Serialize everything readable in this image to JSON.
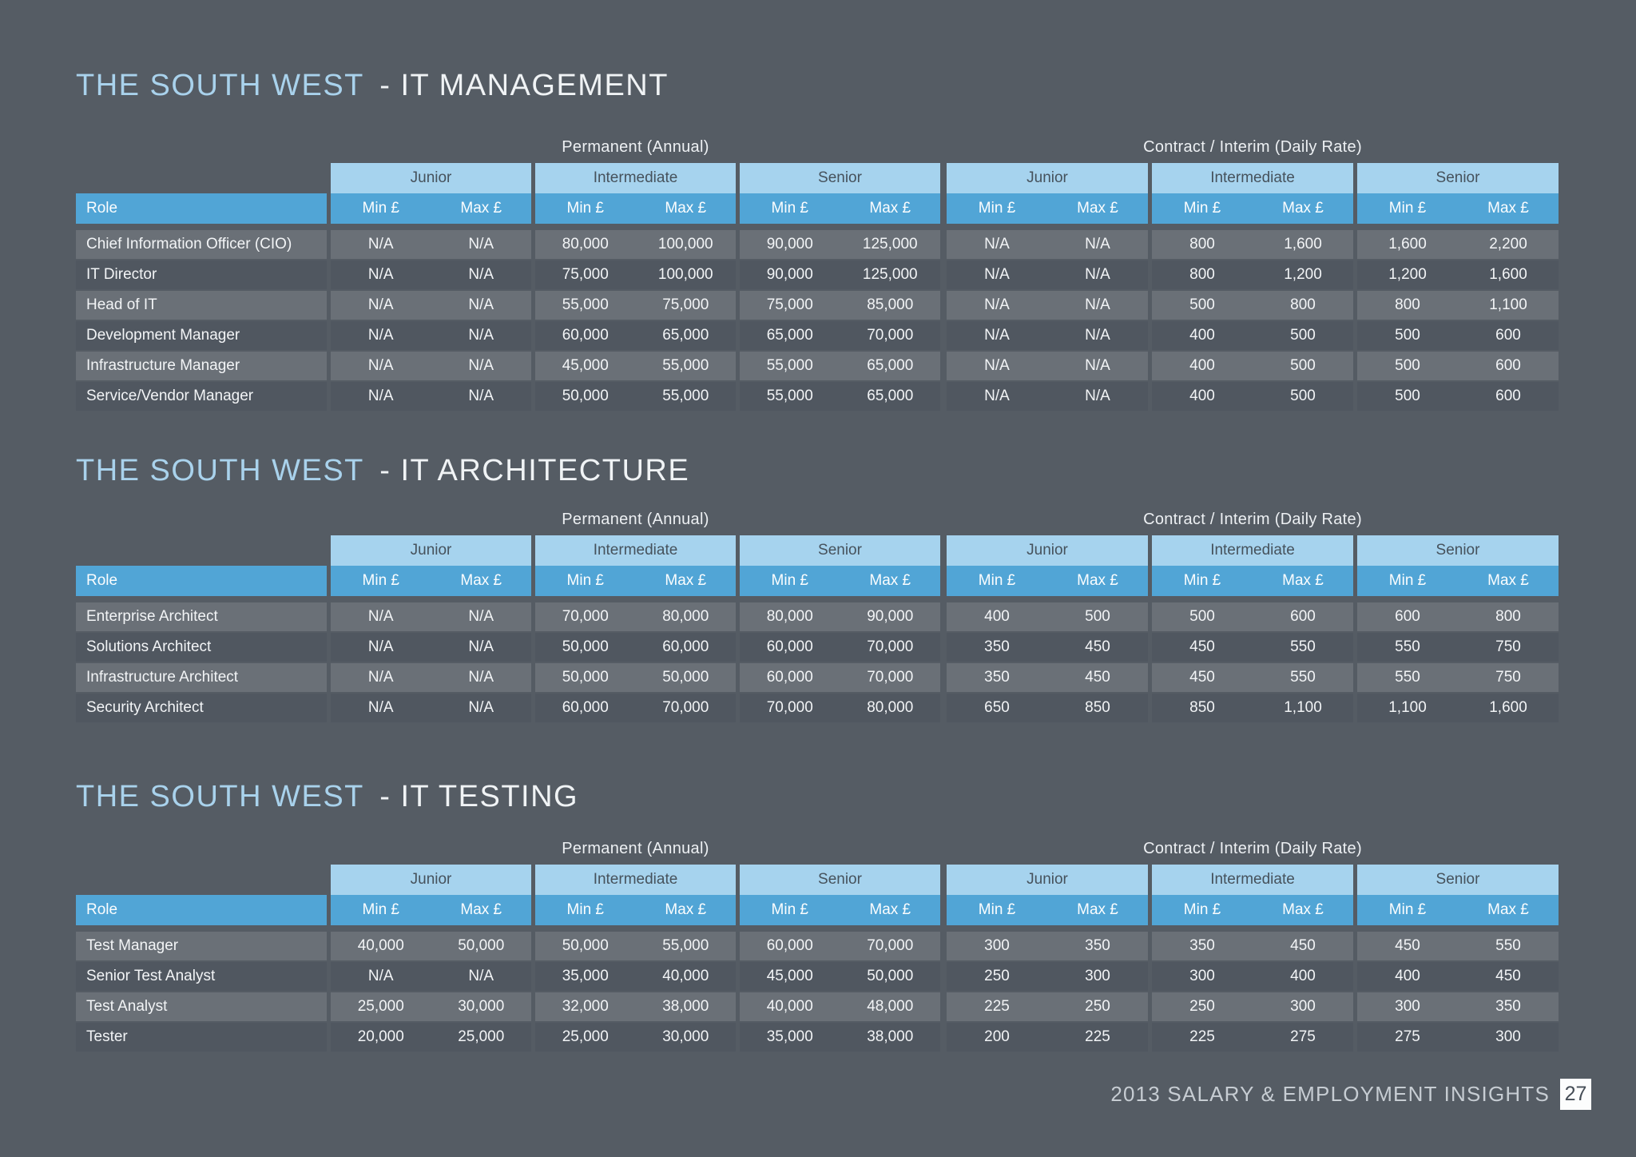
{
  "header_labels": {
    "role": "Role",
    "permanent": "Permanent (Annual)",
    "contract": "Contract / Interim (Daily Rate)",
    "levels": [
      "Junior",
      "Intermediate",
      "Senior"
    ],
    "min": "Min £",
    "max": "Max £"
  },
  "sections": [
    {
      "title_region": "THE SOUTH WEST",
      "title_suffix": "- IT MANAGEMENT",
      "rows": [
        {
          "role": "Chief Information Officer (CIO)",
          "values": [
            "N/A",
            "N/A",
            "80,000",
            "100,000",
            "90,000",
            "125,000",
            "N/A",
            "N/A",
            "800",
            "1,600",
            "1,600",
            "2,200"
          ]
        },
        {
          "role": "IT Director",
          "values": [
            "N/A",
            "N/A",
            "75,000",
            "100,000",
            "90,000",
            "125,000",
            "N/A",
            "N/A",
            "800",
            "1,200",
            "1,200",
            "1,600"
          ]
        },
        {
          "role": "Head of IT",
          "values": [
            "N/A",
            "N/A",
            "55,000",
            "75,000",
            "75,000",
            "85,000",
            "N/A",
            "N/A",
            "500",
            "800",
            "800",
            "1,100"
          ]
        },
        {
          "role": "Development Manager",
          "values": [
            "N/A",
            "N/A",
            "60,000",
            "65,000",
            "65,000",
            "70,000",
            "N/A",
            "N/A",
            "400",
            "500",
            "500",
            "600"
          ]
        },
        {
          "role": "Infrastructure Manager",
          "values": [
            "N/A",
            "N/A",
            "45,000",
            "55,000",
            "55,000",
            "65,000",
            "N/A",
            "N/A",
            "400",
            "500",
            "500",
            "600"
          ]
        },
        {
          "role": "Service/Vendor Manager",
          "values": [
            "N/A",
            "N/A",
            "50,000",
            "55,000",
            "55,000",
            "65,000",
            "N/A",
            "N/A",
            "400",
            "500",
            "500",
            "600"
          ]
        }
      ]
    },
    {
      "title_region": "THE SOUTH WEST",
      "title_suffix": "- IT ARCHITECTURE",
      "rows": [
        {
          "role": "Enterprise Architect",
          "values": [
            "N/A",
            "N/A",
            "70,000",
            "80,000",
            "80,000",
            "90,000",
            "400",
            "500",
            "500",
            "600",
            "600",
            "800"
          ]
        },
        {
          "role": "Solutions Architect",
          "values": [
            "N/A",
            "N/A",
            "50,000",
            "60,000",
            "60,000",
            "70,000",
            "350",
            "450",
            "450",
            "550",
            "550",
            "750"
          ]
        },
        {
          "role": "Infrastructure Architect",
          "values": [
            "N/A",
            "N/A",
            "50,000",
            "50,000",
            "60,000",
            "70,000",
            "350",
            "450",
            "450",
            "550",
            "550",
            "750"
          ]
        },
        {
          "role": "Security Architect",
          "values": [
            "N/A",
            "N/A",
            "60,000",
            "70,000",
            "70,000",
            "80,000",
            "650",
            "850",
            "850",
            "1,100",
            "1,100",
            "1,600"
          ]
        }
      ]
    },
    {
      "title_region": "THE SOUTH WEST",
      "title_suffix": "- IT TESTING",
      "rows": [
        {
          "role": "Test Manager",
          "values": [
            "40,000",
            "50,000",
            "50,000",
            "55,000",
            "60,000",
            "70,000",
            "300",
            "350",
            "350",
            "450",
            "450",
            "550"
          ]
        },
        {
          "role": "Senior Test Analyst",
          "values": [
            "N/A",
            "N/A",
            "35,000",
            "40,000",
            "45,000",
            "50,000",
            "250",
            "300",
            "300",
            "400",
            "400",
            "450"
          ]
        },
        {
          "role": "Test Analyst",
          "values": [
            "25,000",
            "30,000",
            "32,000",
            "38,000",
            "40,000",
            "48,000",
            "225",
            "250",
            "250",
            "300",
            "300",
            "350"
          ]
        },
        {
          "role": "Tester",
          "values": [
            "20,000",
            "25,000",
            "25,000",
            "30,000",
            "35,000",
            "38,000",
            "200",
            "225",
            "225",
            "275",
            "275",
            "300"
          ]
        }
      ]
    }
  ],
  "footer": {
    "text": "2013 SALARY & EMPLOYMENT INSIGHTS",
    "page_number": "27"
  },
  "colors": {
    "background": "#555C64",
    "header_light_blue": "#A6D3EE",
    "header_dark_blue": "#51A5D6",
    "title_accent": "#A9D2EC",
    "row_light": "#6A7077",
    "row_dark": "#505760"
  }
}
